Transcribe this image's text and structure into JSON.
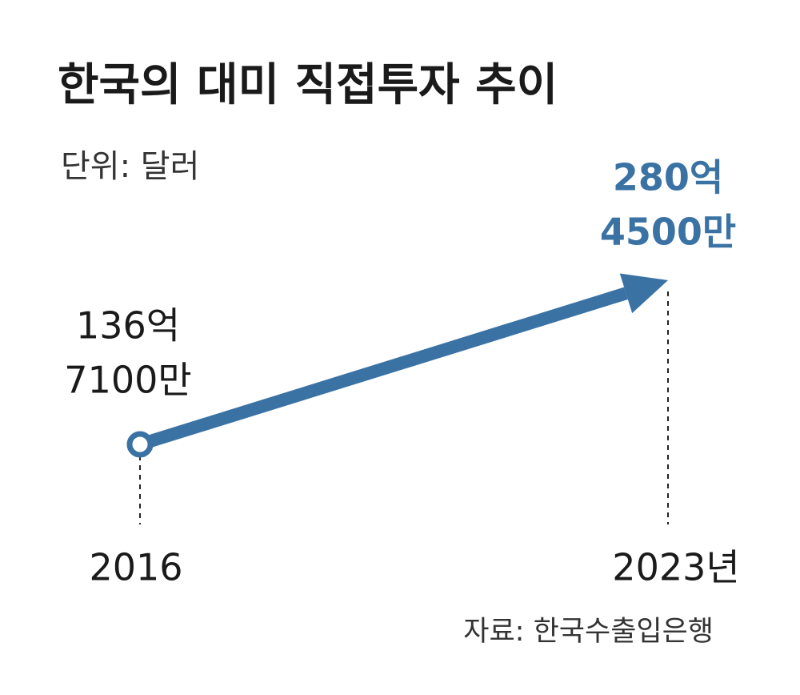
{
  "chart_data": {
    "type": "line",
    "title": "한국의 대미 직접투자 추이",
    "subtitle": "단위: 달러",
    "source": "자료: 한국수출입은행",
    "categories": [
      "2016",
      "2023년"
    ],
    "series": [
      {
        "color": "#3a72a4",
        "values": [
          13671000000,
          28045000000
        ],
        "value_labels": [
          [
            "136억",
            "7100만"
          ],
          [
            "280억",
            "4500만"
          ]
        ]
      }
    ]
  }
}
